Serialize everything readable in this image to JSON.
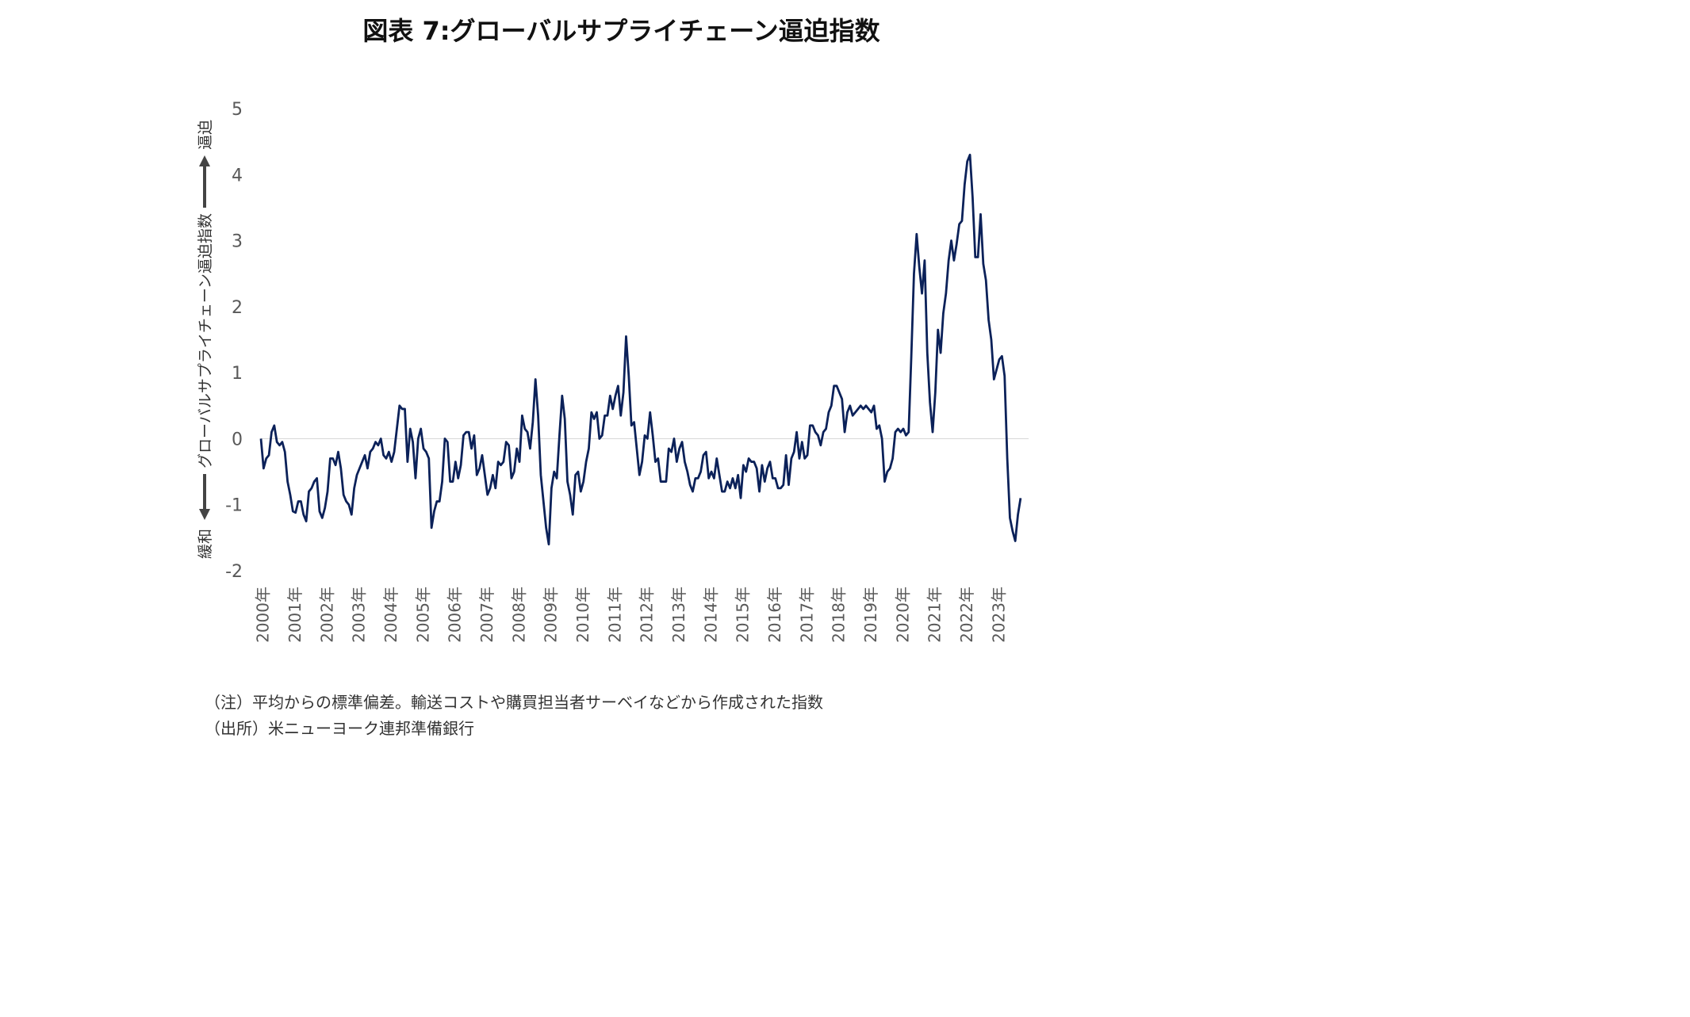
{
  "title": "図表 7:グローバルサプライチェーン逼迫指数",
  "y_axis": {
    "label": "グローバルサプライチェーン逼迫指数",
    "up_label": "逼迫",
    "down_label": "緩和"
  },
  "notes": {
    "note": "（注）平均からの標準偏差。輸送コストや購買担当者サーベイなどから作成された指数",
    "source": "（出所）米ニューヨーク連邦準備銀行"
  },
  "colors": {
    "line": "#0b2159",
    "zero_line": "#d9d9d9",
    "axis_text": "#595959"
  },
  "chart_data": {
    "type": "line",
    "title": "図表 7:グローバルサプライチェーン逼迫指数",
    "ylabel": "グローバルサプライチェーン逼迫指数",
    "xlabel": "",
    "ylim": [
      -2,
      5
    ],
    "yticks": [
      5,
      4,
      3,
      2,
      1,
      0,
      -1,
      -2
    ],
    "xticks": [
      "2000年",
      "2001年",
      "2002年",
      "2003年",
      "2004年",
      "2005年",
      "2006年",
      "2007年",
      "2008年",
      "2009年",
      "2010年",
      "2011年",
      "2012年",
      "2013年",
      "2014年",
      "2015年",
      "2016年",
      "2017年",
      "2018年",
      "2019年",
      "2020年",
      "2021年",
      "2022年",
      "2023年"
    ],
    "grid": false,
    "series": [
      {
        "name": "",
        "x_start": "2000-01",
        "frequency": "monthly",
        "values": [
          0.0,
          -0.45,
          -0.3,
          -0.25,
          0.1,
          0.2,
          -0.05,
          -0.1,
          -0.05,
          -0.2,
          -0.65,
          -0.85,
          -1.1,
          -1.12,
          -0.95,
          -0.95,
          -1.15,
          -1.25,
          -0.8,
          -0.75,
          -0.65,
          -0.6,
          -1.1,
          -1.2,
          -1.05,
          -0.8,
          -0.3,
          -0.3,
          -0.4,
          -0.2,
          -0.45,
          -0.85,
          -0.95,
          -1.0,
          -1.15,
          -0.75,
          -0.55,
          -0.45,
          -0.35,
          -0.25,
          -0.45,
          -0.2,
          -0.15,
          -0.05,
          -0.1,
          0.0,
          -0.25,
          -0.3,
          -0.2,
          -0.35,
          -0.2,
          0.15,
          0.5,
          0.45,
          0.45,
          -0.35,
          0.15,
          -0.05,
          -0.6,
          0.0,
          0.15,
          -0.15,
          -0.2,
          -0.3,
          -1.35,
          -1.1,
          -0.95,
          -0.95,
          -0.65,
          0.0,
          -0.05,
          -0.65,
          -0.65,
          -0.35,
          -0.6,
          -0.4,
          0.05,
          0.1,
          0.1,
          -0.15,
          0.05,
          -0.55,
          -0.45,
          -0.25,
          -0.55,
          -0.85,
          -0.75,
          -0.55,
          -0.75,
          -0.35,
          -0.4,
          -0.35,
          -0.05,
          -0.1,
          -0.6,
          -0.5,
          -0.15,
          -0.35,
          0.35,
          0.15,
          0.1,
          -0.15,
          0.25,
          0.9,
          0.35,
          -0.55,
          -0.95,
          -1.35,
          -1.6,
          -0.75,
          -0.5,
          -0.6,
          0.05,
          0.65,
          0.3,
          -0.65,
          -0.85,
          -1.15,
          -0.55,
          -0.5,
          -0.8,
          -0.65,
          -0.35,
          -0.15,
          0.4,
          0.3,
          0.4,
          0.0,
          0.05,
          0.35,
          0.35,
          0.65,
          0.45,
          0.65,
          0.8,
          0.35,
          0.7,
          1.55,
          0.95,
          0.2,
          0.25,
          -0.15,
          -0.55,
          -0.35,
          0.05,
          0.0,
          0.4,
          0.05,
          -0.35,
          -0.3,
          -0.65,
          -0.65,
          -0.65,
          -0.15,
          -0.2,
          0.0,
          -0.35,
          -0.15,
          -0.05,
          -0.35,
          -0.5,
          -0.7,
          -0.8,
          -0.6,
          -0.6,
          -0.5,
          -0.25,
          -0.2,
          -0.6,
          -0.5,
          -0.6,
          -0.3,
          -0.55,
          -0.8,
          -0.8,
          -0.65,
          -0.75,
          -0.6,
          -0.75,
          -0.55,
          -0.9,
          -0.4,
          -0.5,
          -0.3,
          -0.35,
          -0.35,
          -0.45,
          -0.8,
          -0.4,
          -0.65,
          -0.45,
          -0.35,
          -0.6,
          -0.6,
          -0.75,
          -0.75,
          -0.7,
          -0.25,
          -0.7,
          -0.3,
          -0.2,
          0.1,
          -0.3,
          -0.05,
          -0.3,
          -0.25,
          0.2,
          0.2,
          0.1,
          0.05,
          -0.1,
          0.1,
          0.15,
          0.4,
          0.5,
          0.8,
          0.8,
          0.7,
          0.6,
          0.1,
          0.4,
          0.5,
          0.35,
          0.4,
          0.45,
          0.5,
          0.45,
          0.5,
          0.45,
          0.4,
          0.5,
          0.15,
          0.2,
          0.0,
          -0.65,
          -0.5,
          -0.45,
          -0.3,
          0.1,
          0.15,
          0.1,
          0.15,
          0.05,
          0.1,
          1.25,
          2.5,
          3.1,
          2.6,
          2.2,
          2.7,
          1.3,
          0.55,
          0.1,
          0.7,
          1.65,
          1.3,
          1.9,
          2.2,
          2.7,
          3.0,
          2.7,
          2.95,
          3.25,
          3.3,
          3.85,
          4.2,
          4.3,
          3.65,
          2.75,
          2.75,
          3.4,
          2.65,
          2.4,
          1.8,
          1.5,
          0.9,
          1.05,
          1.2,
          1.25,
          0.95,
          -0.3,
          -1.2,
          -1.4,
          -1.55,
          -1.15,
          -0.9
        ]
      }
    ]
  }
}
